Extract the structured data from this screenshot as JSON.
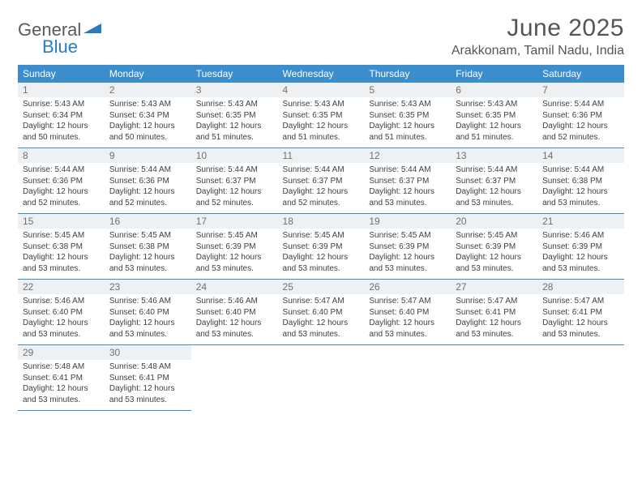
{
  "logo": {
    "text_gray": "General",
    "text_blue": "Blue"
  },
  "title": "June 2025",
  "location": "Arakkonam, Tamil Nadu, India",
  "colors": {
    "header_bg": "#3c8dcc",
    "header_text": "#ffffff",
    "border": "#3c8dcc",
    "daynum_bg": "#eef1f3",
    "daynum_color": "#707070",
    "body_text": "#404040",
    "title_color": "#555555",
    "logo_gray": "#5a5a5a",
    "logo_blue": "#2b7bbf"
  },
  "day_headers": [
    "Sunday",
    "Monday",
    "Tuesday",
    "Wednesday",
    "Thursday",
    "Friday",
    "Saturday"
  ],
  "weeks": [
    [
      {
        "n": "1",
        "sunrise": "5:43 AM",
        "sunset": "6:34 PM",
        "daylight": "12 hours and 50 minutes."
      },
      {
        "n": "2",
        "sunrise": "5:43 AM",
        "sunset": "6:34 PM",
        "daylight": "12 hours and 50 minutes."
      },
      {
        "n": "3",
        "sunrise": "5:43 AM",
        "sunset": "6:35 PM",
        "daylight": "12 hours and 51 minutes."
      },
      {
        "n": "4",
        "sunrise": "5:43 AM",
        "sunset": "6:35 PM",
        "daylight": "12 hours and 51 minutes."
      },
      {
        "n": "5",
        "sunrise": "5:43 AM",
        "sunset": "6:35 PM",
        "daylight": "12 hours and 51 minutes."
      },
      {
        "n": "6",
        "sunrise": "5:43 AM",
        "sunset": "6:35 PM",
        "daylight": "12 hours and 51 minutes."
      },
      {
        "n": "7",
        "sunrise": "5:44 AM",
        "sunset": "6:36 PM",
        "daylight": "12 hours and 52 minutes."
      }
    ],
    [
      {
        "n": "8",
        "sunrise": "5:44 AM",
        "sunset": "6:36 PM",
        "daylight": "12 hours and 52 minutes."
      },
      {
        "n": "9",
        "sunrise": "5:44 AM",
        "sunset": "6:36 PM",
        "daylight": "12 hours and 52 minutes."
      },
      {
        "n": "10",
        "sunrise": "5:44 AM",
        "sunset": "6:37 PM",
        "daylight": "12 hours and 52 minutes."
      },
      {
        "n": "11",
        "sunrise": "5:44 AM",
        "sunset": "6:37 PM",
        "daylight": "12 hours and 52 minutes."
      },
      {
        "n": "12",
        "sunrise": "5:44 AM",
        "sunset": "6:37 PM",
        "daylight": "12 hours and 53 minutes."
      },
      {
        "n": "13",
        "sunrise": "5:44 AM",
        "sunset": "6:37 PM",
        "daylight": "12 hours and 53 minutes."
      },
      {
        "n": "14",
        "sunrise": "5:44 AM",
        "sunset": "6:38 PM",
        "daylight": "12 hours and 53 minutes."
      }
    ],
    [
      {
        "n": "15",
        "sunrise": "5:45 AM",
        "sunset": "6:38 PM",
        "daylight": "12 hours and 53 minutes."
      },
      {
        "n": "16",
        "sunrise": "5:45 AM",
        "sunset": "6:38 PM",
        "daylight": "12 hours and 53 minutes."
      },
      {
        "n": "17",
        "sunrise": "5:45 AM",
        "sunset": "6:39 PM",
        "daylight": "12 hours and 53 minutes."
      },
      {
        "n": "18",
        "sunrise": "5:45 AM",
        "sunset": "6:39 PM",
        "daylight": "12 hours and 53 minutes."
      },
      {
        "n": "19",
        "sunrise": "5:45 AM",
        "sunset": "6:39 PM",
        "daylight": "12 hours and 53 minutes."
      },
      {
        "n": "20",
        "sunrise": "5:45 AM",
        "sunset": "6:39 PM",
        "daylight": "12 hours and 53 minutes."
      },
      {
        "n": "21",
        "sunrise": "5:46 AM",
        "sunset": "6:39 PM",
        "daylight": "12 hours and 53 minutes."
      }
    ],
    [
      {
        "n": "22",
        "sunrise": "5:46 AM",
        "sunset": "6:40 PM",
        "daylight": "12 hours and 53 minutes."
      },
      {
        "n": "23",
        "sunrise": "5:46 AM",
        "sunset": "6:40 PM",
        "daylight": "12 hours and 53 minutes."
      },
      {
        "n": "24",
        "sunrise": "5:46 AM",
        "sunset": "6:40 PM",
        "daylight": "12 hours and 53 minutes."
      },
      {
        "n": "25",
        "sunrise": "5:47 AM",
        "sunset": "6:40 PM",
        "daylight": "12 hours and 53 minutes."
      },
      {
        "n": "26",
        "sunrise": "5:47 AM",
        "sunset": "6:40 PM",
        "daylight": "12 hours and 53 minutes."
      },
      {
        "n": "27",
        "sunrise": "5:47 AM",
        "sunset": "6:41 PM",
        "daylight": "12 hours and 53 minutes."
      },
      {
        "n": "28",
        "sunrise": "5:47 AM",
        "sunset": "6:41 PM",
        "daylight": "12 hours and 53 minutes."
      }
    ],
    [
      {
        "n": "29",
        "sunrise": "5:48 AM",
        "sunset": "6:41 PM",
        "daylight": "12 hours and 53 minutes."
      },
      {
        "n": "30",
        "sunrise": "5:48 AM",
        "sunset": "6:41 PM",
        "daylight": "12 hours and 53 minutes."
      },
      null,
      null,
      null,
      null,
      null
    ]
  ],
  "labels": {
    "sunrise": "Sunrise:",
    "sunset": "Sunset:",
    "daylight": "Daylight:"
  }
}
